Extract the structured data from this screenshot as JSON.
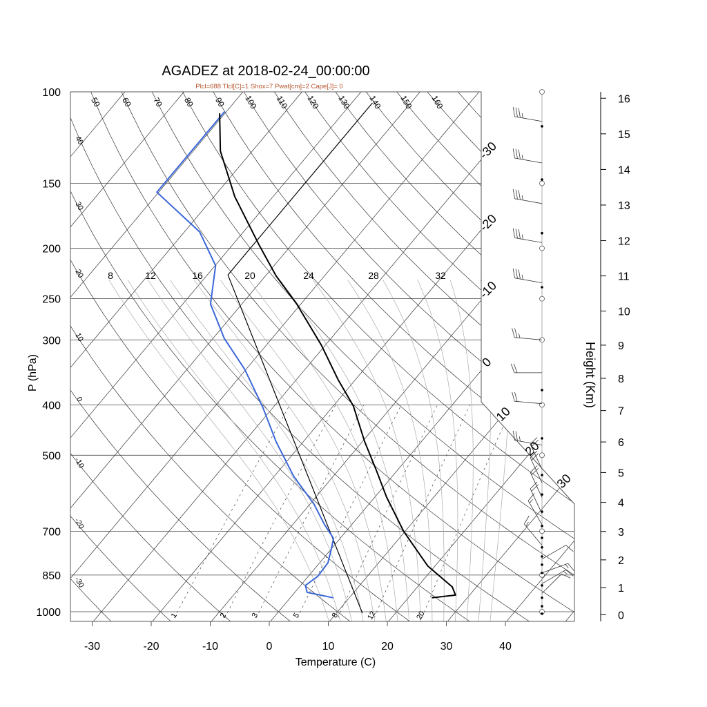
{
  "chart_data": {
    "type": "skewt",
    "title": "AGADEZ at 2018-02-24_00:00:00",
    "subtitle": "Plcl=688 Tlcl[C]=1 Shox=7 Pwat[cm]=2 Cape[J]= 0",
    "xlabel": "Temperature (C)",
    "ylabel": "P (hPa)",
    "y2label": "Height (Km)",
    "pressure_ticks": [
      100,
      150,
      200,
      250,
      300,
      400,
      500,
      700,
      850,
      1000
    ],
    "temperature_ticks": [
      -30,
      -20,
      -10,
      0,
      10,
      20,
      30,
      40
    ],
    "height_ticks": [
      0,
      1,
      2,
      3,
      4,
      5,
      6,
      7,
      8,
      9,
      10,
      11,
      12,
      13,
      14,
      15,
      16
    ],
    "ylim_hpa": [
      1050,
      100
    ],
    "isotherm_labels": [
      "-30",
      "-20",
      "-10",
      "0",
      "10",
      "20",
      "30"
    ],
    "dry_adiabat_top_labels": [
      "50",
      "60",
      "70",
      "80",
      "90",
      "100",
      "110",
      "120",
      "130",
      "140",
      "150",
      "160"
    ],
    "dry_adiabat_left_labels": [
      "40",
      "30",
      "20",
      "10",
      "0",
      "-10",
      "-20",
      "-30"
    ],
    "moist_adiabat_labels": [
      "8",
      "12",
      "16",
      "20",
      "24",
      "28",
      "32"
    ],
    "mixing_ratio_labels": [
      "1",
      "2",
      "3",
      "5",
      "8",
      "12",
      "20"
    ],
    "colors": {
      "temperature": "#000000",
      "dewpoint": "#3a66d8",
      "parcel": "#000000",
      "subtitle": "#b5522a"
    },
    "temperature": [
      {
        "p": 940,
        "t": 24.0
      },
      {
        "p": 929,
        "t": 27.6
      },
      {
        "p": 896,
        "t": 25.9
      },
      {
        "p": 817,
        "t": 18.8
      },
      {
        "p": 701,
        "t": 9.8
      },
      {
        "p": 602,
        "t": 2.0
      },
      {
        "p": 533,
        "t": -3.7
      },
      {
        "p": 471,
        "t": -9.6
      },
      {
        "p": 402,
        "t": -16.6
      },
      {
        "p": 358,
        "t": -22.9
      },
      {
        "p": 307,
        "t": -30.7
      },
      {
        "p": 256,
        "t": -40.7
      },
      {
        "p": 226,
        "t": -48.2
      },
      {
        "p": 197,
        "t": -55.5
      },
      {
        "p": 159,
        "t": -66.5
      },
      {
        "p": 130,
        "t": -75.4
      },
      {
        "p": 110,
        "t": -80.9
      }
    ],
    "dewpoint": [
      {
        "p": 940,
        "t": 7.3
      },
      {
        "p": 918,
        "t": 2.1
      },
      {
        "p": 890,
        "t": 0.8
      },
      {
        "p": 855,
        "t": 1.6
      },
      {
        "p": 805,
        "t": 1.4
      },
      {
        "p": 757,
        "t": 0.0
      },
      {
        "p": 723,
        "t": -1.1
      },
      {
        "p": 680,
        "t": -4.6
      },
      {
        "p": 621,
        "t": -9.3
      },
      {
        "p": 549,
        "t": -16.7
      },
      {
        "p": 471,
        "t": -24.6
      },
      {
        "p": 404,
        "t": -31.8
      },
      {
        "p": 342,
        "t": -40.2
      },
      {
        "p": 298,
        "t": -48.1
      },
      {
        "p": 256,
        "t": -55.3
      },
      {
        "p": 216,
        "t": -59.9
      },
      {
        "p": 186,
        "t": -67.4
      },
      {
        "p": 156,
        "t": -80.3
      },
      {
        "p": 109,
        "t": -80.3
      }
    ],
    "parcel": [
      {
        "p": 1006,
        "t": 14.4
      },
      {
        "p": 225,
        "t": -56.5
      },
      {
        "p": 105,
        "t": -56.5
      }
    ],
    "winds": [
      {
        "p": 114,
        "dir": 280,
        "spd": 35
      },
      {
        "p": 137,
        "dir": 280,
        "spd": 35
      },
      {
        "p": 164,
        "dir": 280,
        "spd": 35
      },
      {
        "p": 195,
        "dir": 280,
        "spd": 35
      },
      {
        "p": 233,
        "dir": 280,
        "spd": 35
      },
      {
        "p": 300,
        "dir": 275,
        "spd": 25
      },
      {
        "p": 347,
        "dir": 270,
        "spd": 20
      },
      {
        "p": 398,
        "dir": 275,
        "spd": 20
      },
      {
        "p": 478,
        "dir": 280,
        "spd": 25
      },
      {
        "p": 532,
        "dir": 335,
        "spd": 20
      },
      {
        "p": 565,
        "dir": 335,
        "spd": 20
      },
      {
        "p": 603,
        "dir": 335,
        "spd": 20
      },
      {
        "p": 648,
        "dir": 335,
        "spd": 20
      },
      {
        "p": 680,
        "dir": 330,
        "spd": 15
      },
      {
        "p": 745,
        "dir": 320,
        "spd": 15
      },
      {
        "p": 792,
        "dir": 60,
        "spd": 10
      },
      {
        "p": 842,
        "dir": 70,
        "spd": 15
      },
      {
        "p": 883,
        "dir": 60,
        "spd": 15
      },
      {
        "p": 922,
        "dir": 45,
        "spd": 10
      }
    ],
    "level_dots_hpa": [
      116.5,
      147.5,
      187,
      237.6,
      374.7,
      464,
      546,
      595,
      642,
      684,
      721,
      752,
      783,
      812,
      842,
      890,
      940,
      976,
      1009
    ],
    "mandatory_levels_hpa": [
      100,
      150,
      200,
      250,
      300,
      400,
      500,
      700,
      850,
      1000
    ]
  }
}
